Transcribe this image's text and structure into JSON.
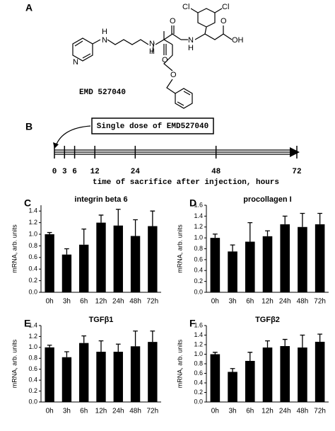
{
  "structure": {
    "panel": "A",
    "label": "EMD 527040",
    "atoms": [
      "N",
      "H",
      "N",
      "H",
      "N",
      "O",
      "N",
      "H",
      "O",
      "O",
      "OH",
      "Cl",
      "Cl",
      "O"
    ]
  },
  "timeline": {
    "panel": "B",
    "note": "Single dose of EMD527040",
    "ticks": [
      0,
      3,
      6,
      12,
      24,
      48,
      72
    ],
    "xlim": [
      0,
      72
    ],
    "xlabel": "time of sacrifice after injection, hours"
  },
  "chart_data": [
    {
      "type": "bar",
      "panel": "C",
      "title": "integrin beta 6",
      "ylabel": "mRNA, arb. units",
      "categories": [
        "0h",
        "3h",
        "6h",
        "12h",
        "24h",
        "48h",
        "72h"
      ],
      "series": [
        {
          "color": "#000000",
          "values": [
            1.0,
            0.65,
            0.82,
            1.2,
            1.15,
            0.97,
            1.14
          ],
          "errors": [
            0.03,
            0.1,
            0.27,
            0.13,
            0.28,
            0.28,
            0.26
          ]
        }
      ],
      "ylim": [
        0,
        1.5
      ],
      "yticks": [
        {
          "value": 0,
          "label": "0.0"
        },
        0.2,
        0.4,
        0.6,
        0.8,
        {
          "value": 1,
          "label": "1.0"
        },
        1.2,
        1.4
      ]
    },
    {
      "type": "bar",
      "panel": "D",
      "title": "procollagen I",
      "ylabel": "mRNA, arb. units",
      "categories": [
        "0h",
        "3h",
        "6h",
        "12h",
        "24h",
        "48h",
        "72h"
      ],
      "series": [
        {
          "color": "#000000",
          "values": [
            1.0,
            0.75,
            0.93,
            1.03,
            1.25,
            1.2,
            1.25
          ],
          "errors": [
            0.07,
            0.12,
            0.35,
            0.1,
            0.15,
            0.25,
            0.2
          ]
        }
      ],
      "ylim": [
        0,
        1.6
      ],
      "yticks": [
        {
          "value": 0,
          "label": "0.0"
        },
        0.2,
        0.4,
        0.6,
        0.8,
        {
          "value": 1,
          "label": "1.0"
        },
        1.2,
        1.4,
        1.6
      ]
    },
    {
      "type": "bar",
      "panel": "E",
      "title": "TGFβ1",
      "ylabel": "mRNA, arb. units",
      "categories": [
        "0h",
        "3h",
        "6h",
        "12h",
        "24h",
        "48h",
        "72h"
      ],
      "series": [
        {
          "color": "#000000",
          "values": [
            1.0,
            0.82,
            1.08,
            0.92,
            0.92,
            1.02,
            1.1
          ],
          "errors": [
            0.04,
            0.1,
            0.13,
            0.2,
            0.14,
            0.28,
            0.2
          ]
        }
      ],
      "ylim": [
        0,
        1.4
      ],
      "yticks": [
        {
          "value": 0,
          "label": "0.0"
        },
        0.2,
        0.4,
        0.6,
        0.8,
        {
          "value": 1,
          "label": "1.0"
        },
        1.2,
        1.4
      ]
    },
    {
      "type": "bar",
      "panel": "F",
      "title": "TGFβ2",
      "ylabel": "mRNA, arb. units",
      "categories": [
        "0h",
        "3h",
        "6h",
        "12h",
        "24h",
        "48h",
        "72h"
      ],
      "series": [
        {
          "color": "#000000",
          "values": [
            1.0,
            0.63,
            0.86,
            1.14,
            1.17,
            1.14,
            1.26
          ],
          "errors": [
            0.04,
            0.07,
            0.18,
            0.14,
            0.14,
            0.26,
            0.16
          ]
        }
      ],
      "ylim": [
        0,
        1.6
      ],
      "yticks": [
        {
          "value": 0,
          "label": "0.0"
        },
        0.2,
        0.4,
        0.6,
        0.8,
        {
          "value": 1,
          "label": "1.0"
        },
        1.2,
        1.4,
        1.6
      ]
    }
  ]
}
